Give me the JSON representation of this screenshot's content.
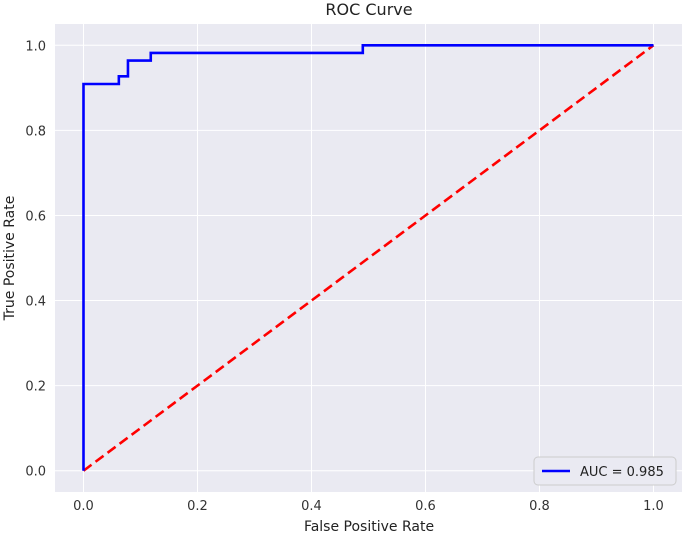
{
  "chart_data": {
    "type": "line",
    "title": "ROC Curve",
    "xlabel": "False Positive Rate",
    "ylabel": "True Positive Rate",
    "xlim": [
      -0.05,
      1.05
    ],
    "ylim": [
      -0.05,
      1.05
    ],
    "xticks": [
      "0.0",
      "0.2",
      "0.4",
      "0.6",
      "0.8",
      "1.0"
    ],
    "yticks": [
      "0.0",
      "0.2",
      "0.4",
      "0.6",
      "0.8",
      "1.0"
    ],
    "grid": true,
    "legend_position": "lower-right",
    "series": [
      {
        "name": "AUC = 0.985",
        "color": "#0000ff",
        "style": "solid",
        "x": [
          0.0,
          0.0,
          0.062,
          0.062,
          0.078,
          0.078,
          0.118,
          0.118,
          0.49,
          0.49,
          1.0
        ],
        "y": [
          0.0,
          0.909,
          0.909,
          0.927,
          0.927,
          0.964,
          0.964,
          0.982,
          0.982,
          1.0,
          1.0
        ]
      },
      {
        "color": "#ff0000",
        "style": "dashed",
        "x": [
          0.0,
          1.0
        ],
        "y": [
          0.0,
          1.0
        ]
      }
    ]
  }
}
